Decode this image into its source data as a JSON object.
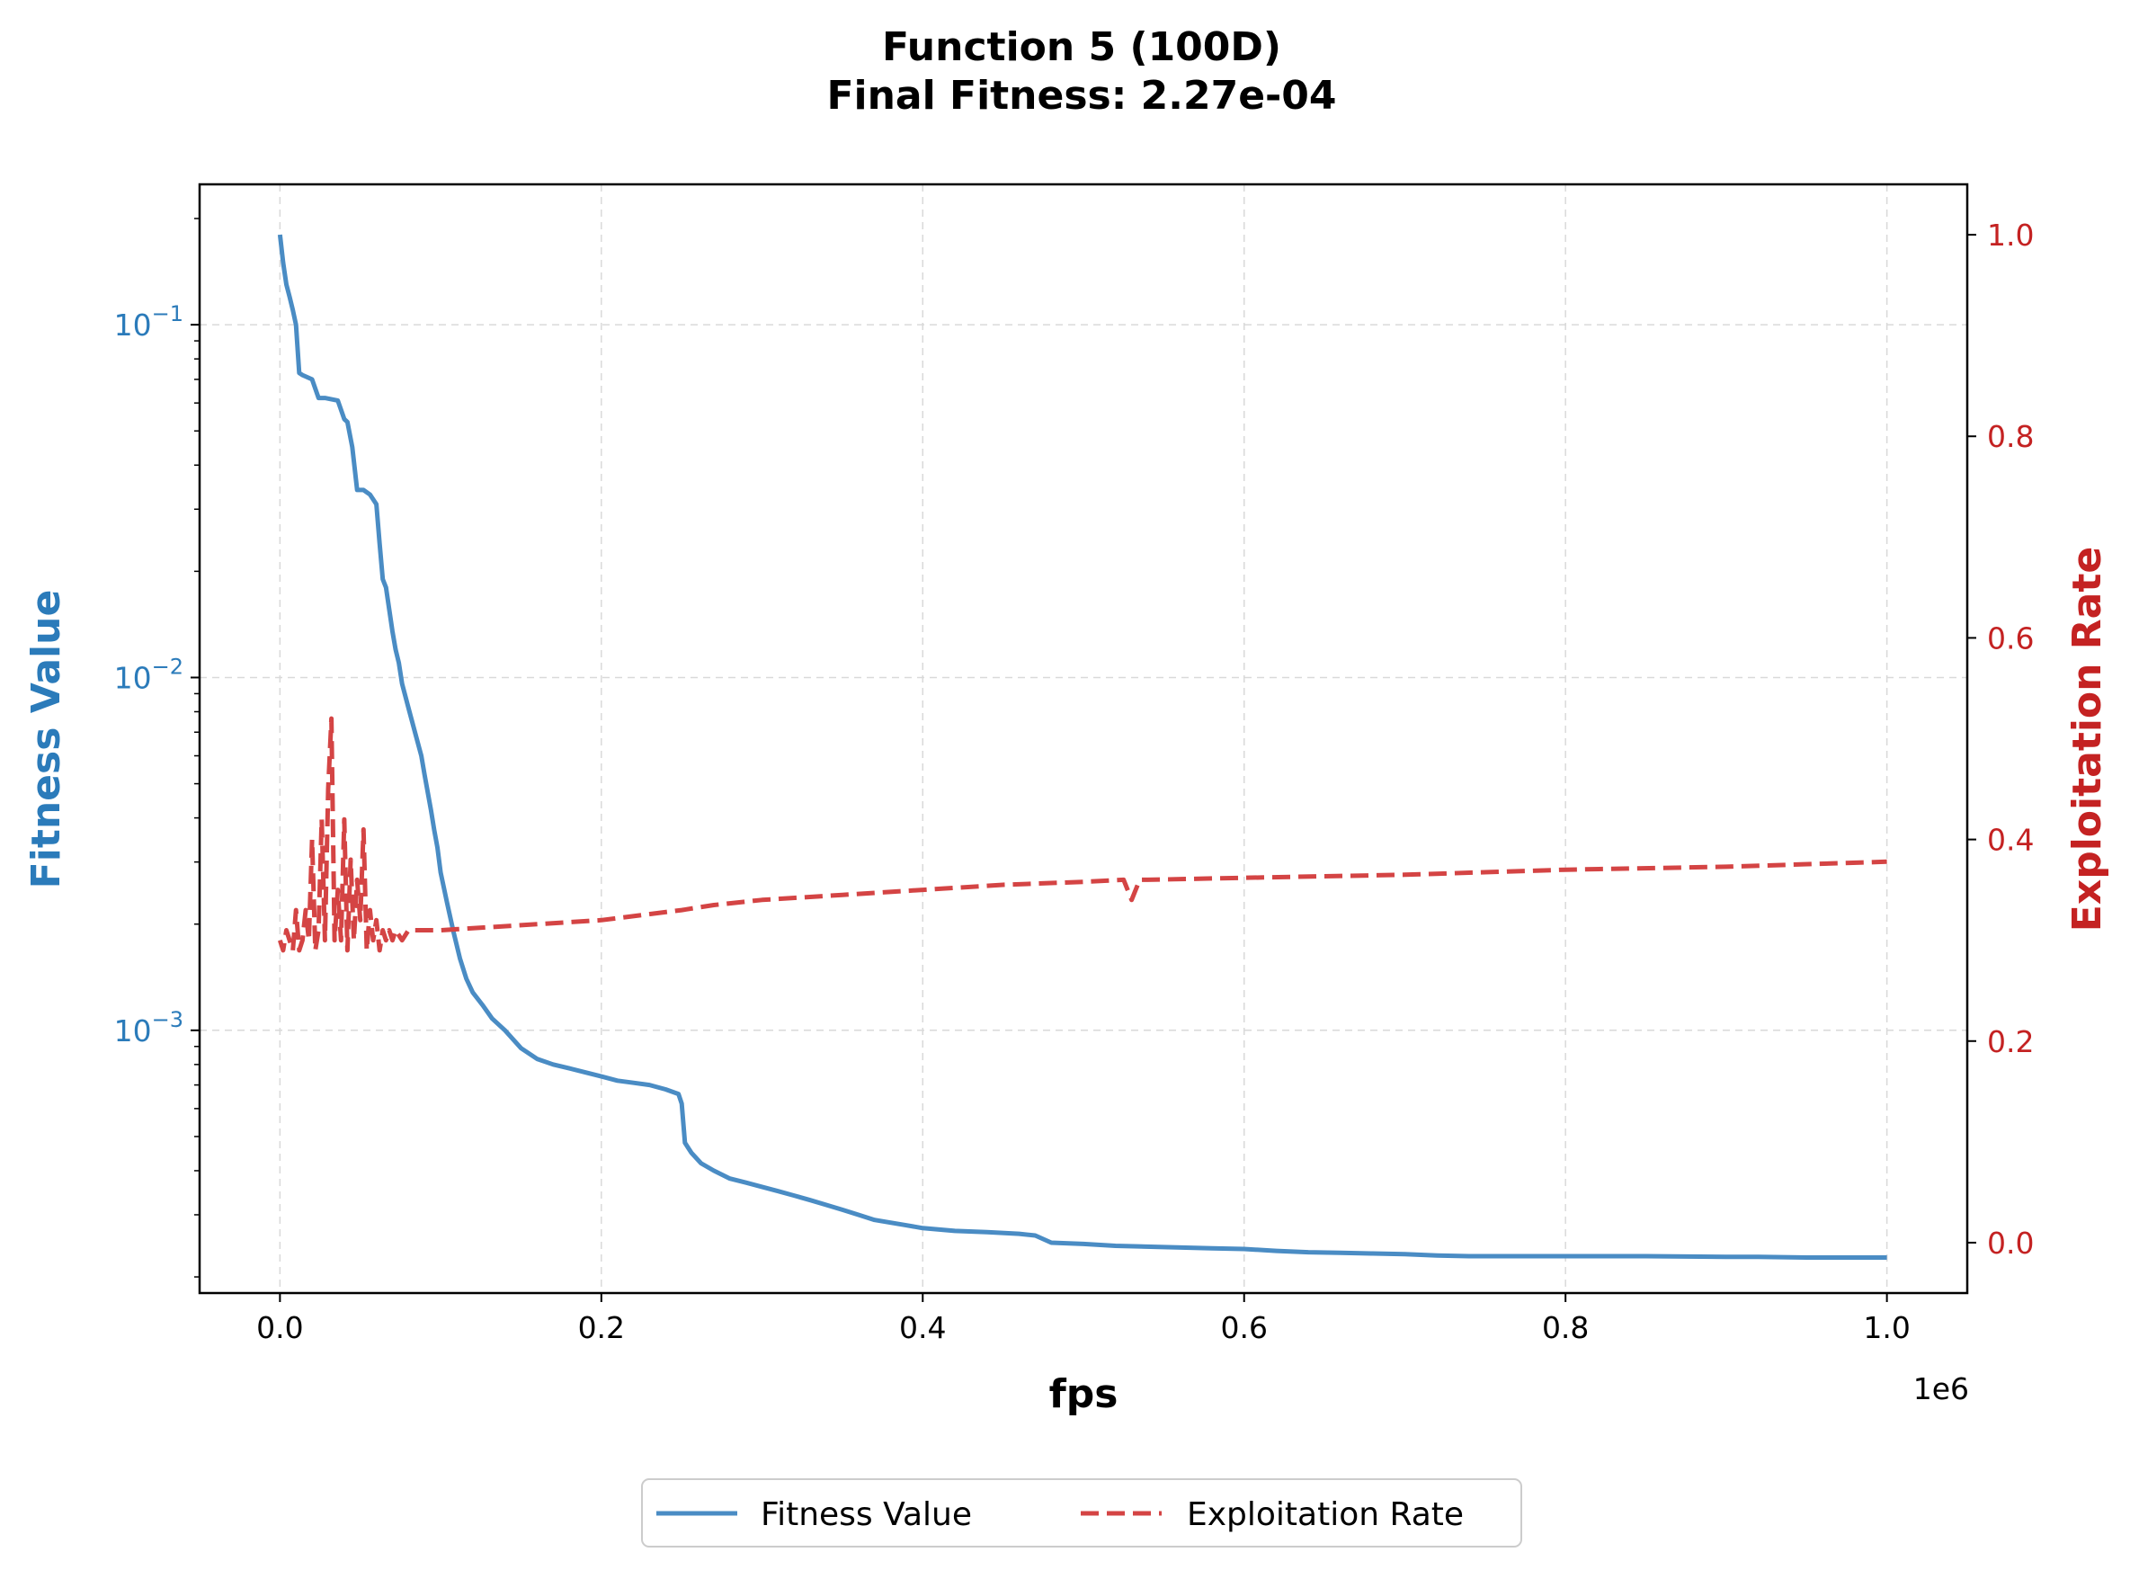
{
  "chart_data": {
    "type": "line",
    "title_line1": "Function 5 (100D)",
    "title_line2": "Final Fitness: 2.27e-04",
    "xlabel": "fps",
    "x_offset_label": "1e6",
    "ylabel_left": "Fitness Value",
    "ylabel_right": "Exploitation Rate",
    "xlim": [
      -50000,
      1050000
    ],
    "ylim_left": [
      0.00018,
      0.25
    ],
    "yscale_left": "log",
    "ylim_right": [
      -0.05,
      1.05
    ],
    "x_ticks": [
      0,
      200000,
      400000,
      600000,
      800000,
      1000000
    ],
    "x_tick_labels": [
      "0.0",
      "0.2",
      "0.4",
      "0.6",
      "0.8",
      "1.0"
    ],
    "y_left_ticks": [
      0.1,
      0.01,
      0.001
    ],
    "y_left_tick_labels": [
      {
        "base": "10",
        "exp": "−1"
      },
      {
        "base": "10",
        "exp": "−2"
      },
      {
        "base": "10",
        "exp": "−3"
      }
    ],
    "y_right_ticks": [
      0.0,
      0.2,
      0.4,
      0.6,
      0.8,
      1.0
    ],
    "y_right_tick_labels": [
      "0.0",
      "0.2",
      "0.4",
      "0.6",
      "0.8",
      "1.0"
    ],
    "grid": true,
    "legend_placement": "below-center",
    "colors": {
      "fitness": "#4a8cc4",
      "exploitation": "#d44444",
      "left_axis": "#2b7bba",
      "right_axis": "#c42222"
    },
    "series": [
      {
        "name": "Fitness Value",
        "axis": "left",
        "style": "solid",
        "x": [
          0,
          2000,
          4000,
          6000,
          8000,
          10000,
          12000,
          14000,
          20000,
          24000,
          28000,
          36000,
          40000,
          42000,
          45000,
          48000,
          52000,
          56000,
          60000,
          62000,
          64000,
          66000,
          70000,
          72000,
          74000,
          76000,
          80000,
          84000,
          88000,
          90000,
          94000,
          96000,
          98000,
          100000,
          104000,
          108000,
          112000,
          116000,
          120000,
          126000,
          132000,
          140000,
          150000,
          160000,
          170000,
          180000,
          190000,
          200000,
          210000,
          220000,
          230000,
          240000,
          248000,
          250000,
          252000,
          256000,
          262000,
          270000,
          280000,
          290000,
          300000,
          310000,
          320000,
          330000,
          340000,
          350000,
          360000,
          370000,
          380000,
          390000,
          400000,
          420000,
          440000,
          460000,
          470000,
          480000,
          500000,
          520000,
          550000,
          580000,
          600000,
          620000,
          640000,
          660000,
          680000,
          700000,
          720000,
          740000,
          800000,
          850000,
          900000,
          920000,
          950000,
          1000000
        ],
        "y": [
          0.18,
          0.15,
          0.13,
          0.12,
          0.11,
          0.1,
          0.073,
          0.072,
          0.07,
          0.062,
          0.062,
          0.061,
          0.054,
          0.053,
          0.045,
          0.034,
          0.034,
          0.033,
          0.031,
          0.024,
          0.019,
          0.018,
          0.0135,
          0.012,
          0.011,
          0.0096,
          0.0082,
          0.007,
          0.006,
          0.0053,
          0.0042,
          0.0037,
          0.0033,
          0.0028,
          0.0023,
          0.0019,
          0.0016,
          0.0014,
          0.00128,
          0.00118,
          0.00108,
          0.001,
          0.00089,
          0.00083,
          0.0008,
          0.00078,
          0.00076,
          0.00074,
          0.00072,
          0.00071,
          0.0007,
          0.00068,
          0.00066,
          0.00062,
          0.00048,
          0.00045,
          0.00042,
          0.0004,
          0.00038,
          0.00037,
          0.00036,
          0.00035,
          0.00034,
          0.00033,
          0.00032,
          0.00031,
          0.0003,
          0.00029,
          0.000285,
          0.00028,
          0.000275,
          0.00027,
          0.000268,
          0.000265,
          0.000262,
          0.00025,
          0.000248,
          0.000245,
          0.000243,
          0.000241,
          0.00024,
          0.000237,
          0.000235,
          0.000234,
          0.000233,
          0.000232,
          0.00023,
          0.000229,
          0.000229,
          0.000229,
          0.000228,
          0.000228,
          0.000227,
          0.000227
        ]
      },
      {
        "name": "Exploitation Rate",
        "axis": "right",
        "style": "dashed",
        "x": [
          0,
          2000,
          4000,
          6000,
          8000,
          10000,
          12000,
          14000,
          16000,
          18000,
          20000,
          22000,
          24000,
          26000,
          28000,
          30000,
          32000,
          34000,
          36000,
          38000,
          40000,
          42000,
          44000,
          46000,
          48000,
          50000,
          52000,
          54000,
          56000,
          58000,
          60000,
          62000,
          64000,
          66000,
          68000,
          70000,
          72000,
          76000,
          80000,
          90000,
          100000,
          150000,
          200000,
          250000,
          270000,
          300000,
          350000,
          400000,
          450000,
          500000,
          525000,
          530000,
          535000,
          540000,
          600000,
          700000,
          800000,
          900000,
          1000000
        ],
        "y": [
          0.3,
          0.29,
          0.31,
          0.3,
          0.29,
          0.33,
          0.29,
          0.3,
          0.33,
          0.3,
          0.4,
          0.29,
          0.31,
          0.42,
          0.3,
          0.45,
          0.52,
          0.3,
          0.35,
          0.3,
          0.42,
          0.29,
          0.38,
          0.3,
          0.36,
          0.32,
          0.41,
          0.29,
          0.33,
          0.3,
          0.32,
          0.29,
          0.31,
          0.3,
          0.31,
          0.3,
          0.31,
          0.3,
          0.31,
          0.31,
          0.31,
          0.315,
          0.32,
          0.33,
          0.335,
          0.34,
          0.345,
          0.35,
          0.355,
          0.358,
          0.36,
          0.34,
          0.36,
          0.36,
          0.362,
          0.365,
          0.37,
          0.373,
          0.378
        ]
      }
    ]
  }
}
